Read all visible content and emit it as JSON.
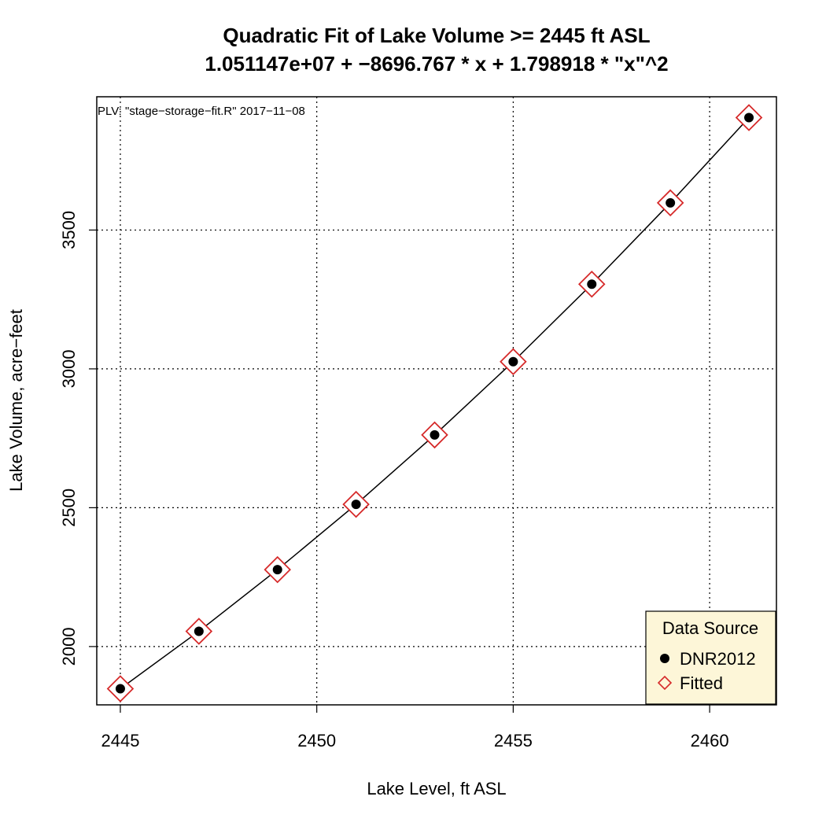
{
  "chart_data": {
    "type": "scatter",
    "title": "Quadratic Fit of Lake Volume >= 2445 ft ASL",
    "subtitle": "1.051147e+07 + −8696.767 * x + 1.798918 * \"x\"^2",
    "xlabel": "Lake Level, ft ASL",
    "ylabel": "Lake Volume, acre−feet",
    "annotation": "PLV: \"stage−storage−fit.R\"  2017−11−08",
    "xlim": [
      2444.4,
      2461.7
    ],
    "ylim": [
      1790,
      3980
    ],
    "xticks": [
      2445,
      2450,
      2455,
      2460
    ],
    "yticks": [
      2000,
      2500,
      3000,
      3500
    ],
    "grid": true,
    "legend": {
      "title": "Data Source",
      "placement": "bottom-right",
      "entries": [
        "DNR2012",
        "Fitted"
      ]
    },
    "colors": {
      "observed": "#000000",
      "fitted": "#d62a2a",
      "legend_bg": "#fdf6d8",
      "fit_line": "#000000"
    },
    "series": [
      {
        "name": "DNR2012",
        "marker": "filled-circle",
        "x": [
          2445,
          2447,
          2449,
          2451,
          2453,
          2455,
          2457,
          2459,
          2461
        ],
        "y": [
          1848,
          2055,
          2277,
          2512,
          2762,
          3026,
          3305,
          3598,
          3905
        ]
      },
      {
        "name": "Fitted",
        "marker": "open-diamond",
        "x": [
          2445,
          2447,
          2449,
          2451,
          2453,
          2455,
          2457,
          2459,
          2461
        ],
        "y": [
          1848,
          2055,
          2277,
          2512,
          2762,
          3026,
          3305,
          3598,
          3905
        ]
      }
    ]
  }
}
